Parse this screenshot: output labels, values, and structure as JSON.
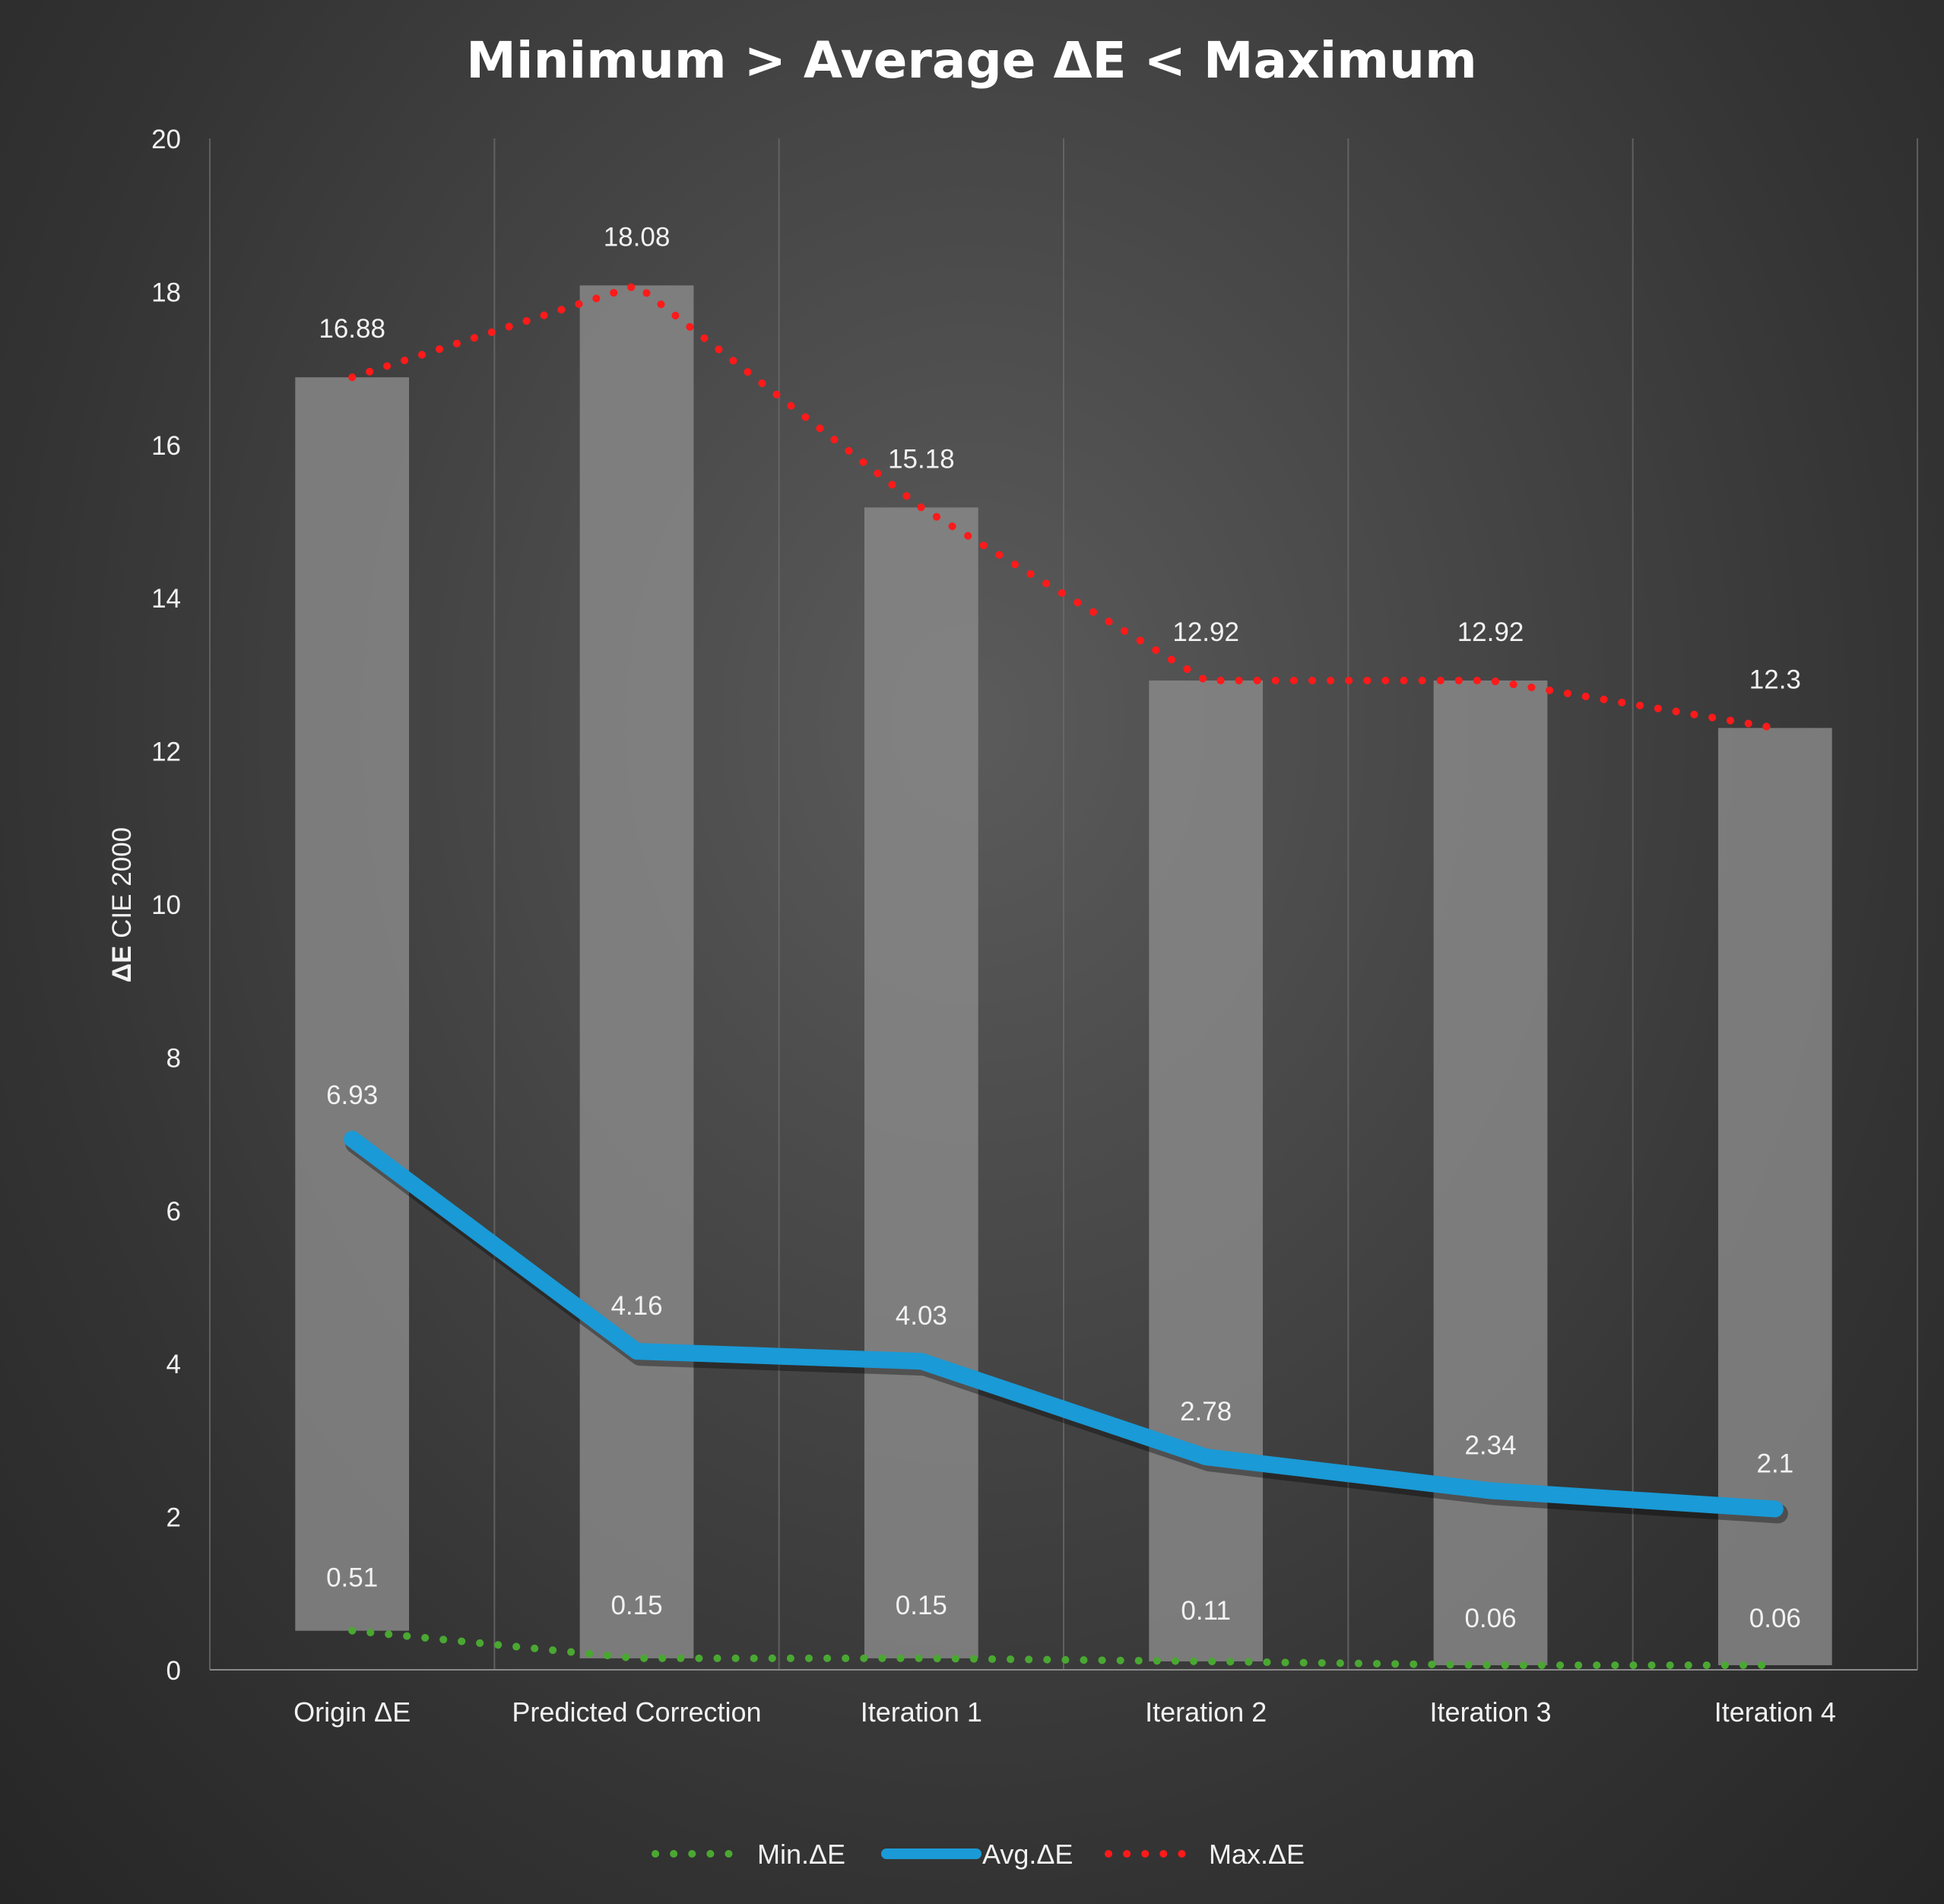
{
  "chart_data": {
    "type": "line",
    "title": "Minimum > Average ΔE < Maximum",
    "ylabel_bold": "ΔE",
    "ylabel_rest": " CIE 2000",
    "xlabel": "",
    "ylim": [
      0,
      20
    ],
    "y_ticks": [
      "0",
      "2",
      "4",
      "6",
      "8",
      "10",
      "12",
      "14",
      "16",
      "18",
      "20"
    ],
    "categories": [
      "Origin ΔE",
      "Predicted Correction",
      "Iteration 1",
      "Iteration 2",
      "Iteration 3",
      "Iteration 4"
    ],
    "range_bars": {
      "low": [
        0.51,
        0.15,
        0.15,
        0.11,
        0.06,
        0.06
      ],
      "high": [
        16.88,
        18.08,
        15.18,
        12.92,
        12.92,
        12.3
      ]
    },
    "series": [
      {
        "name": "Min.ΔE",
        "values": [
          0.51,
          0.15,
          0.15,
          0.11,
          0.06,
          0.06
        ],
        "labels": [
          "0.51",
          "0.15",
          "0.15",
          "0.11",
          "0.06",
          "0.06"
        ],
        "color": "#4aa832",
        "style": "dotted"
      },
      {
        "name": "Avg.ΔE",
        "values": [
          6.93,
          4.16,
          4.03,
          2.78,
          2.34,
          2.1
        ],
        "labels": [
          "6.93",
          "4.16",
          "4.03",
          "2.78",
          "2.34",
          "2.1"
        ],
        "color": "#1a9ad6",
        "style": "solid"
      },
      {
        "name": "Max.ΔE",
        "values": [
          16.88,
          18.08,
          15.18,
          12.92,
          12.92,
          12.3
        ],
        "labels": [
          "16.88",
          "18.08",
          "15.18",
          "12.92",
          "12.92",
          "12.3"
        ],
        "color": "#ff1a1a",
        "style": "dotted"
      }
    ],
    "grid": "vertical",
    "legend_position": "bottom"
  }
}
